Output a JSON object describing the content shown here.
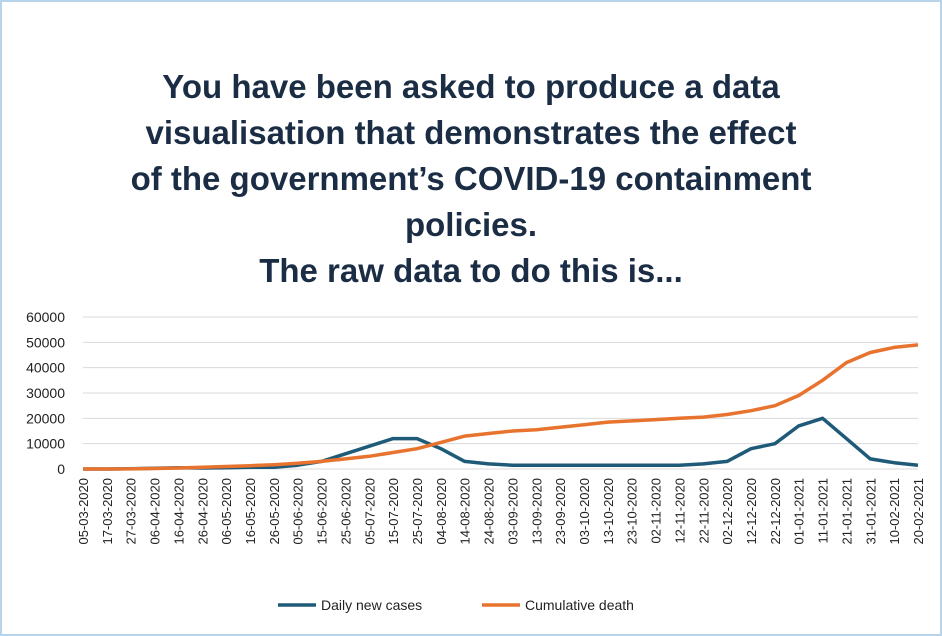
{
  "chart_data": {
    "type": "line",
    "title": [
      "You have been asked to produce a data",
      "visualisation that demonstrates the effect",
      "of the government’s COVID-19 containment",
      "policies.",
      "The raw data to do this is..."
    ],
    "categories": [
      "05-03-2020",
      "17-03-2020",
      "27-03-2020",
      "06-04-2020",
      "16-04-2020",
      "26-04-2020",
      "06-05-2020",
      "16-05-2020",
      "26-05-2020",
      "05-06-2020",
      "15-06-2020",
      "25-06-2020",
      "05-07-2020",
      "15-07-2020",
      "25-07-2020",
      "04-08-2020",
      "14-08-2020",
      "24-08-2020",
      "03-09-2020",
      "13-09-2020",
      "23-09-2020",
      "03-10-2020",
      "13-10-2020",
      "23-10-2020",
      "02-11-2020",
      "12-11-2020",
      "22-11-2020",
      "02-12-2020",
      "12-12-2020",
      "22-12-2020",
      "01-01-2021",
      "11-01-2021",
      "21-01-2021",
      "31-01-2021",
      "10-02-2021",
      "20-02-2021"
    ],
    "series": [
      {
        "name": "Daily new cases",
        "color": "#1f5b78",
        "values": [
          0,
          0,
          100,
          300,
          500,
          400,
          500,
          700,
          700,
          1500,
          3000,
          6000,
          9000,
          12000,
          12000,
          8000,
          3000,
          2000,
          1500,
          1500,
          1500,
          1500,
          1500,
          1500,
          1500,
          1500,
          2000,
          3000,
          8000,
          10000,
          17000,
          20000,
          12000,
          4000,
          2500,
          1500
        ]
      },
      {
        "name": "Cumulative death",
        "color": "#e8732e",
        "values": [
          0,
          0,
          50,
          200,
          400,
          700,
          1000,
          1300,
          1700,
          2300,
          3000,
          4000,
          5000,
          6500,
          8000,
          10500,
          13000,
          14000,
          15000,
          15500,
          16500,
          17500,
          18500,
          19000,
          19500,
          20000,
          20500,
          21500,
          23000,
          25000,
          29000,
          35000,
          42000,
          46000,
          48000,
          49000
        ]
      }
    ],
    "ylim": [
      0,
      60000
    ],
    "yticks": [
      0,
      10000,
      20000,
      30000,
      40000,
      50000,
      60000
    ],
    "grid": true,
    "legend": "bottom"
  }
}
